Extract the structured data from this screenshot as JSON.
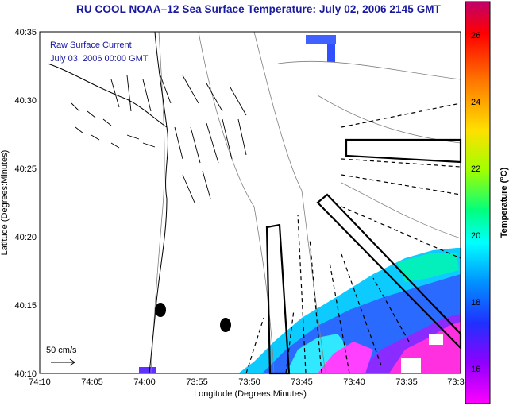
{
  "title": "RU COOL  NOAA–12  Sea Surface Temperature:  July 02, 2006 2145 GMT",
  "overlay": {
    "label": "Raw Surface Current",
    "time": "July 03, 2006 00:00 GMT",
    "scale_label": "50 cm/s"
  },
  "axes": {
    "xlabel": "Longitude (Degrees:Minutes)",
    "ylabel": "Latitude (Degrees:Minutes)",
    "x_ticks": [
      "74:10",
      "74:05",
      "74:00",
      "73:55",
      "73:50",
      "73:45",
      "73:40",
      "73:35",
      "73:3"
    ],
    "y_ticks": [
      "40:35",
      "40:30",
      "40:25",
      "40:20",
      "40:15",
      "40:10"
    ]
  },
  "colorbar": {
    "label": "Temperature (°C)",
    "ticks": [
      "26",
      "24",
      "22",
      "20",
      "18",
      "16"
    ],
    "colors": [
      "#c0006a",
      "#ff0000",
      "#ff7a00",
      "#ffe000",
      "#a0ff00",
      "#00ff80",
      "#00ffff",
      "#0090ff",
      "#2030ff",
      "#9000ff",
      "#ff00ff"
    ]
  }
}
